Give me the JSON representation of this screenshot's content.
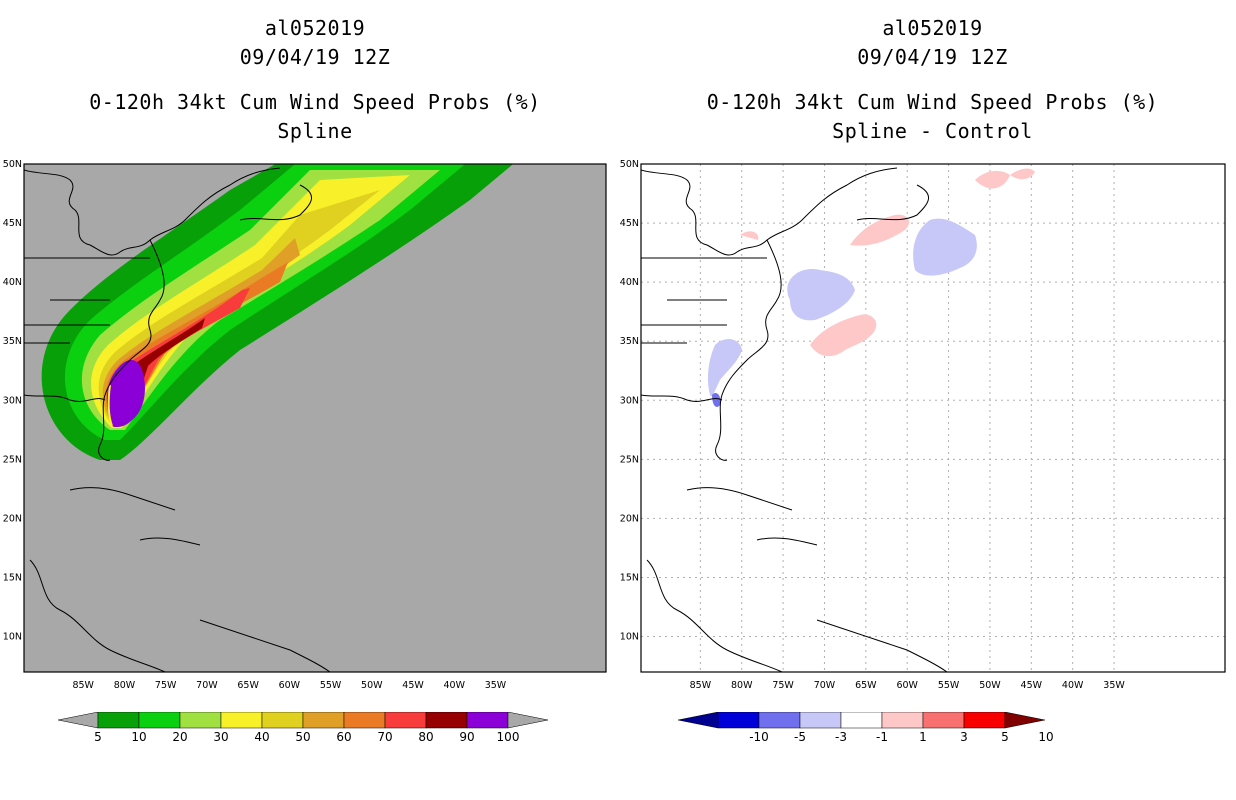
{
  "left": {
    "storm_id": "al052019",
    "datetime": "09/04/19 12Z",
    "product": "0-120h 34kt Cum Wind Speed Probs (%)",
    "method": "Spline",
    "colorbar": {
      "labels": [
        "5",
        "10",
        "20",
        "30",
        "40",
        "50",
        "60",
        "70",
        "80",
        "90",
        "100"
      ],
      "colors": [
        "#08a008",
        "#0ad010",
        "#a0e040",
        "#f8f028",
        "#e0d020",
        "#e0a028",
        "#ea7a24",
        "#f83c3c",
        "#960000",
        "#8c00d8"
      ],
      "end_color": "#a8a8a8"
    }
  },
  "right": {
    "storm_id": "al052019",
    "datetime": "09/04/19 12Z",
    "product": "0-120h 34kt Cum Wind Speed Probs (%)",
    "method": "Spline - Control",
    "colorbar": {
      "labels": [
        "-10",
        "-5",
        "-3",
        "-1",
        "1",
        "3",
        "5",
        "10"
      ],
      "colors": [
        "#0000d8",
        "#7070ee",
        "#c8c8f8",
        "#ffffff",
        "#ffc8c8",
        "#f87070",
        "#f80000"
      ],
      "low_color": "#000090",
      "high_color": "#800000"
    }
  },
  "axes": {
    "lon_labels": [
      "85W",
      "80W",
      "75W",
      "70W",
      "65W",
      "60W",
      "55W",
      "50W",
      "45W",
      "40W",
      "35W"
    ],
    "lat_labels": [
      "50N",
      "45N",
      "40N",
      "35N",
      "30N",
      "25N",
      "20N",
      "15N",
      "10N"
    ]
  }
}
